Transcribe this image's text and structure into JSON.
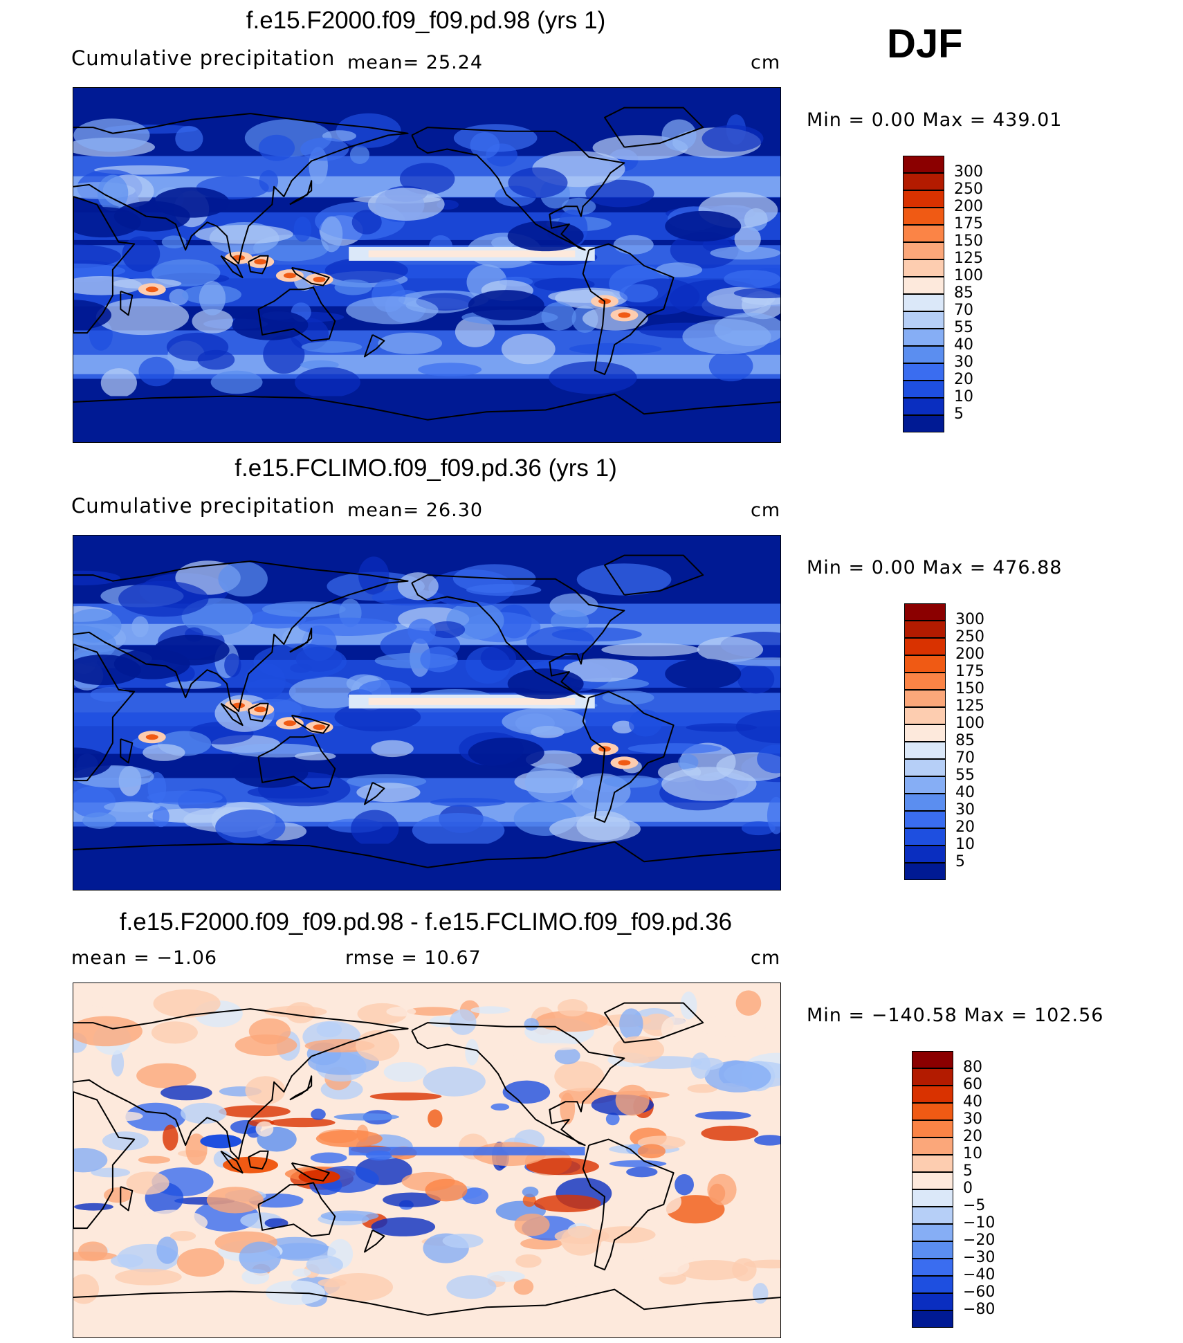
{
  "header": {
    "season": "DJF"
  },
  "panels": [
    {
      "title": "f.e15.F2000.f09_f09.pd.98 (yrs 1)",
      "left_label": "Cumulative precipitation",
      "mid_label": "mean=   25.24",
      "units": "cm",
      "minmax": "Min  =     0.00  Max  =  439.01",
      "palette": "precip"
    },
    {
      "title": "f.e15.FCLIMO.f09_f09.pd.36 (yrs 1)",
      "left_label": "Cumulative precipitation",
      "mid_label": "mean=   26.30",
      "units": "cm",
      "minmax": "Min  =     0.00  Max  =  476.88",
      "palette": "precip"
    },
    {
      "title": "f.e15.F2000.f09_f09.pd.98 - f.e15.FCLIMO.f09_f09.pd.36",
      "left_label": "mean  =   −1.06",
      "mid_label": "rmse  =   10.67",
      "units": "cm",
      "minmax": "Min  = −140.58  Max  =  102.56",
      "palette": "diff"
    }
  ],
  "colorbars": {
    "precip": {
      "labels": [
        "300",
        "250",
        "200",
        "175",
        "150",
        "125",
        "100",
        "85",
        "70",
        "55",
        "40",
        "30",
        "20",
        "10",
        "5"
      ],
      "colors": [
        "#8b0000",
        "#b31b00",
        "#d93200",
        "#f05a14",
        "#fb8446",
        "#fba77a",
        "#fdcdb0",
        "#fde9dc",
        "#dbe8f9",
        "#b6cff7",
        "#86aef5",
        "#5b8ef0",
        "#3a6df0",
        "#1e4fe0",
        "#0a2ec0",
        "#001a94"
      ]
    },
    "diff": {
      "labels": [
        "80",
        "60",
        "40",
        "30",
        "20",
        "10",
        "5",
        "0",
        "−5",
        "−10",
        "−20",
        "−30",
        "−40",
        "−60",
        "−80"
      ],
      "colors": [
        "#8b0000",
        "#b31b00",
        "#d93200",
        "#f05a14",
        "#fb8446",
        "#fba77a",
        "#fdcdb0",
        "#fde9dc",
        "#dbe8f9",
        "#b6cff7",
        "#86aef5",
        "#5b8ef0",
        "#3a6df0",
        "#1e4fe0",
        "#0a2ec0",
        "#001a94"
      ]
    }
  },
  "chart_data": [
    {
      "type": "heatmap",
      "title": "f.e15.F2000.f09_f09.pd.98 (yrs 1)",
      "subtitle": "Cumulative precipitation",
      "mean": 25.24,
      "min": 0.0,
      "max": 439.01,
      "units": "cm",
      "levels": [
        5,
        10,
        20,
        30,
        40,
        55,
        70,
        85,
        100,
        125,
        150,
        175,
        200,
        250,
        300
      ]
    },
    {
      "type": "heatmap",
      "title": "f.e15.FCLIMO.f09_f09.pd.36 (yrs 1)",
      "subtitle": "Cumulative precipitation",
      "mean": 26.3,
      "min": 0.0,
      "max": 476.88,
      "units": "cm",
      "levels": [
        5,
        10,
        20,
        30,
        40,
        55,
        70,
        85,
        100,
        125,
        150,
        175,
        200,
        250,
        300
      ]
    },
    {
      "type": "heatmap",
      "title": "f.e15.F2000.f09_f09.pd.98 - f.e15.FCLIMO.f09_f09.pd.36",
      "mean": -1.06,
      "rmse": 10.67,
      "min": -140.58,
      "max": 102.56,
      "units": "cm",
      "levels": [
        -80,
        -60,
        -40,
        -30,
        -20,
        -10,
        -5,
        0,
        5,
        10,
        20,
        30,
        40,
        60,
        80
      ]
    }
  ]
}
